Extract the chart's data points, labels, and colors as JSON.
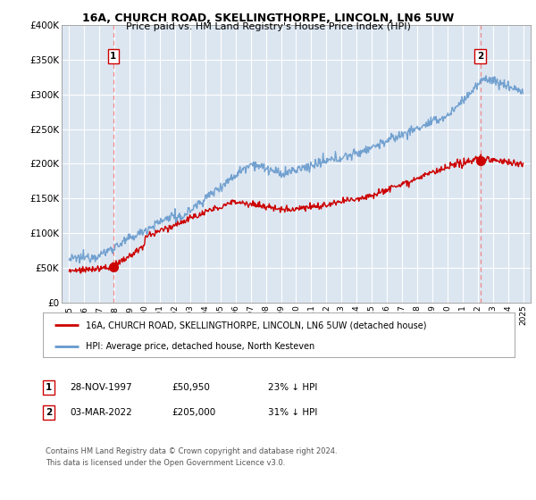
{
  "title": "16A, CHURCH ROAD, SKELLINGTHORPE, LINCOLN, LN6 5UW",
  "subtitle": "Price paid vs. HM Land Registry's House Price Index (HPI)",
  "legend_line1": "16A, CHURCH ROAD, SKELLINGTHORPE, LINCOLN, LN6 5UW (detached house)",
  "legend_line2": "HPI: Average price, detached house, North Kesteven",
  "footer": "Contains HM Land Registry data © Crown copyright and database right 2024.\nThis data is licensed under the Open Government Licence v3.0.",
  "point1_x": 1997.91,
  "point1_y": 50950,
  "point2_x": 2022.17,
  "point2_y": 205000,
  "ylim": [
    0,
    400000
  ],
  "xlim": [
    1994.5,
    2025.5
  ],
  "bg_color": "#dce6f1",
  "red_color": "#cc0000",
  "blue_color": "#6699cc",
  "grid_color": "#ffffff",
  "vline_color": "#ee8888",
  "box_color": "#cc0000"
}
